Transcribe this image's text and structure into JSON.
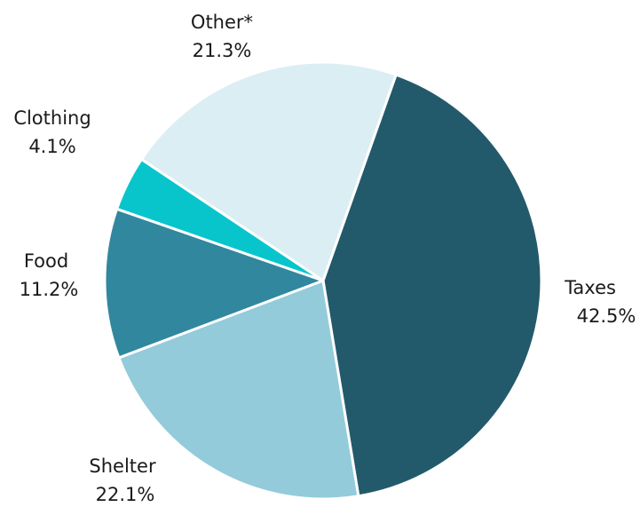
{
  "chart_data": {
    "type": "pie",
    "start_angle_deg": 19.5,
    "direction": "clockwise",
    "slices": [
      {
        "label": "Taxes",
        "value": 42.5,
        "value_label": "42.5%",
        "color": "#235a6b"
      },
      {
        "label": "Shelter",
        "value": 22.1,
        "value_label": "22.1%",
        "color": "#93cbdb"
      },
      {
        "label": "Food",
        "value": 11.2,
        "value_label": "11.2%",
        "color": "#31879e"
      },
      {
        "label": "Clothing",
        "value": 4.1,
        "value_label": "4.1%",
        "color": "#08c5cc"
      },
      {
        "label": "Other*",
        "value": 21.3,
        "value_label": "21.3%",
        "color": "#dbeef4"
      }
    ]
  }
}
